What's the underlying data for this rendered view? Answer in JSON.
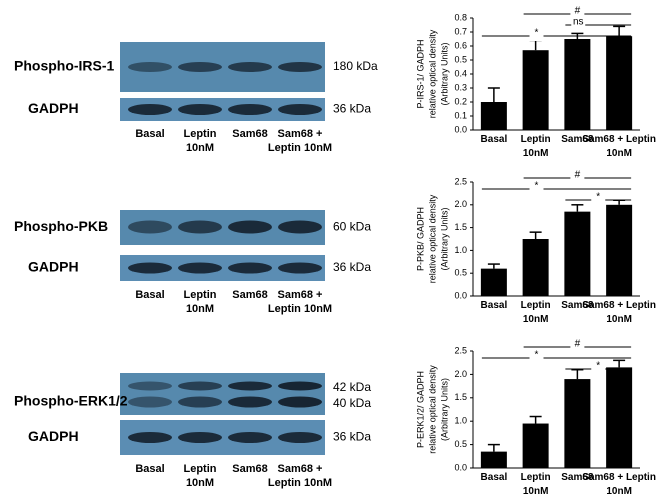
{
  "blots": [
    {
      "label": "Phospho-IRS-1",
      "sizes": [
        "180 kDa"
      ],
      "loading": "GADPH",
      "loading_size": "36 kDa",
      "lanes": [
        "Basal",
        "Leptin 10nM",
        "Sam68",
        "Sam68 + Leptin 10nM"
      ]
    },
    {
      "label": "Phospho-PKB",
      "sizes": [
        "60 kDa"
      ],
      "loading": "GADPH",
      "loading_size": "36 kDa",
      "lanes": [
        "Basal",
        "Leptin 10nM",
        "Sam68",
        "Sam68 + Leptin 10nM"
      ]
    },
    {
      "label": "Phospho-ERK1/2",
      "sizes": [
        "42 kDa",
        "40 kDa"
      ],
      "loading": "GADPH",
      "loading_size": "36 kDa",
      "lanes": [
        "Basal",
        "Leptin 10nM",
        "Sam68",
        "Sam68 + Leptin 10nM"
      ]
    }
  ],
  "chart_data": [
    {
      "type": "bar",
      "ylabel": [
        "P-IRS-1/ GADPH",
        "relative optical density",
        "(Arbitrary Units)"
      ],
      "categories": [
        "Basal",
        "Leptin 10nM",
        "Sam68",
        "Sam68 + Leptin 10nM"
      ],
      "values": [
        0.2,
        0.57,
        0.65,
        0.67
      ],
      "errors": [
        0.1,
        0.07,
        0.04,
        0.07
      ],
      "color": "#000000",
      "ylim": [
        0,
        0.8
      ],
      "yticks": [
        {
          "value": 0,
          "label": "0.0"
        },
        0.1,
        0.2,
        0.3,
        0.4,
        0.5,
        0.6,
        0.7,
        0.8
      ],
      "brackets": [
        {
          "label": "#",
          "from": "Leptin 10nM",
          "to": "Sam68 + Leptin 10nM"
        },
        {
          "label": "ns",
          "from": "Sam68",
          "to": "Sam68 + Leptin 10nM"
        },
        {
          "label": "*",
          "from": "Basal",
          "to": "Sam68 + Leptin 10nM"
        }
      ]
    },
    {
      "type": "bar",
      "ylabel": [
        "P-PKB/ GADPH",
        "relative optical density",
        "(Arbitrary Units)"
      ],
      "categories": [
        "Basal",
        "Leptin 10nM",
        "Sam68",
        "Sam68 + Leptin 10nM"
      ],
      "values": [
        0.6,
        1.25,
        1.85,
        2.0
      ],
      "errors": [
        0.1,
        0.15,
        0.15,
        0.1
      ],
      "color": "#000000",
      "ylim": [
        0,
        2.5
      ],
      "yticks": [
        {
          "value": 0,
          "label": "0.0"
        },
        0.5,
        {
          "value": 1,
          "label": "1.0"
        },
        1.5,
        {
          "value": 2,
          "label": "2.0"
        },
        2.5
      ],
      "brackets": [
        {
          "label": "#",
          "from": "Leptin 10nM",
          "to": "Sam68 + Leptin 10nM"
        },
        {
          "label": "*",
          "from": "Basal",
          "to": "Sam68 + Leptin 10nM"
        },
        {
          "label": "*",
          "from": "Sam68",
          "to": "Sam68 + Leptin 10nM"
        }
      ]
    },
    {
      "type": "bar",
      "ylabel": [
        "P-ERK1/2/ GADPH",
        "relative optical density",
        "(Arbitrary Units)"
      ],
      "categories": [
        "Basal",
        "Leptin 10nM",
        "Sam68",
        "Sam68 + Leptin 10nM"
      ],
      "values": [
        0.35,
        0.95,
        1.9,
        2.15
      ],
      "errors": [
        0.15,
        0.15,
        0.2,
        0.15
      ],
      "color": "#000000",
      "ylim": [
        0,
        2.5
      ],
      "yticks": [
        {
          "value": 0,
          "label": "0.0"
        },
        0.5,
        {
          "value": 1,
          "label": "1.0"
        },
        1.5,
        {
          "value": 2,
          "label": "2.0"
        },
        2.5
      ],
      "brackets": [
        {
          "label": "#",
          "from": "Leptin 10nM",
          "to": "Sam68 + Leptin 10nM"
        },
        {
          "label": "*",
          "from": "Basal",
          "to": "Sam68 + Leptin 10nM"
        },
        {
          "label": "*",
          "from": "Sam68",
          "to": "Sam68 + Leptin 10nM"
        }
      ]
    }
  ]
}
